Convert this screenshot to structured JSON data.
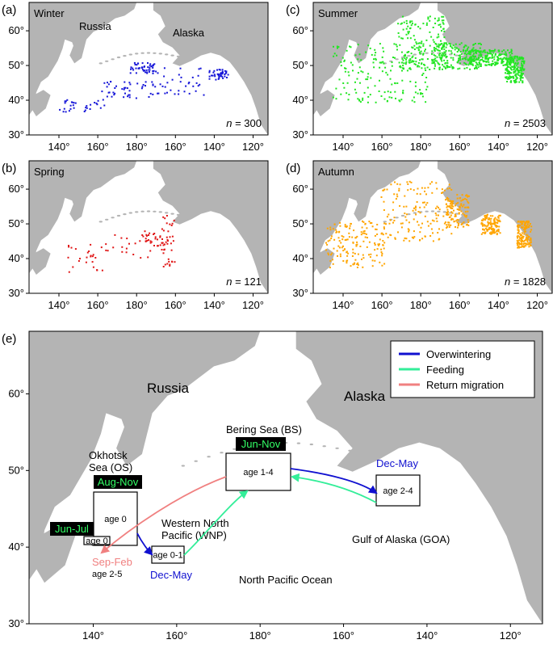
{
  "colors": {
    "ocean": "#ffffff",
    "land": "#b4b4b4",
    "winter": "#1515d8",
    "summer": "#22e622",
    "spring": "#e01616",
    "autumn": "#ffa500",
    "overwintering": "#1010d0",
    "feeding": "#33ee99",
    "return": "#f08080",
    "tag_bg": "#000000",
    "tag_fg": "#33ff66"
  },
  "axes": {
    "lon_ticks_small": [
      "140°",
      "160°",
      "180°",
      "160°",
      "140°",
      "120°"
    ],
    "lat_ticks_small": [
      "30°",
      "40°",
      "50°",
      "60°"
    ],
    "lon_ticks_large": [
      "140°",
      "160°",
      "180°",
      "160°",
      "140°",
      "120°"
    ],
    "lat_ticks_large": [
      "30°",
      "40°",
      "50°",
      "60°"
    ]
  },
  "panels": [
    {
      "letter": "(a)",
      "season": "Winter",
      "n_label": "n",
      "n_eq": " = ",
      "n_value": "300",
      "extra": [
        "Russia",
        "Alaska"
      ]
    },
    {
      "letter": "(b)",
      "season": "Spring",
      "n_label": "n",
      "n_eq": " = ",
      "n_value": "121"
    },
    {
      "letter": "(c)",
      "season": "Summer",
      "n_label": "n",
      "n_eq": " = ",
      "n_value": "2503"
    },
    {
      "letter": "(d)",
      "season": "Autumn",
      "n_label": "n",
      "n_eq": " = ",
      "n_value": "1828"
    }
  ],
  "panel_e": {
    "letter": "(e)",
    "labels": {
      "russia": "Russia",
      "alaska": "Alaska",
      "pacific": "North Pacific Ocean",
      "bering": "Bering Sea (BS)",
      "okhotsk_1": "Okhotsk",
      "okhotsk_2": "Sea (OS)",
      "wnp_1": "Western North",
      "wnp_2": "Pacific (WNP)",
      "goa": "Gulf of Alaska (GOA)"
    },
    "tags": {
      "bs": "Jun-Nov",
      "os": "Aug-Nov",
      "os_small": "Jun-Jul"
    },
    "seasons": {
      "goa_dec": "Dec-May",
      "wnp_dec": "Dec-May",
      "sep_feb": "Sep-Feb"
    },
    "boxes": {
      "os": "age 0",
      "os_small": "age 0",
      "wnp": "age 0-1",
      "bs": "age 1-4",
      "goa": "age 2-4",
      "age25": "age 2-5"
    },
    "legend": [
      {
        "label": "Overwintering",
        "color": "#1010d0"
      },
      {
        "label": "Feeding",
        "color": "#33ee99"
      },
      {
        "label": "Return migration",
        "color": "#f08080"
      }
    ]
  }
}
